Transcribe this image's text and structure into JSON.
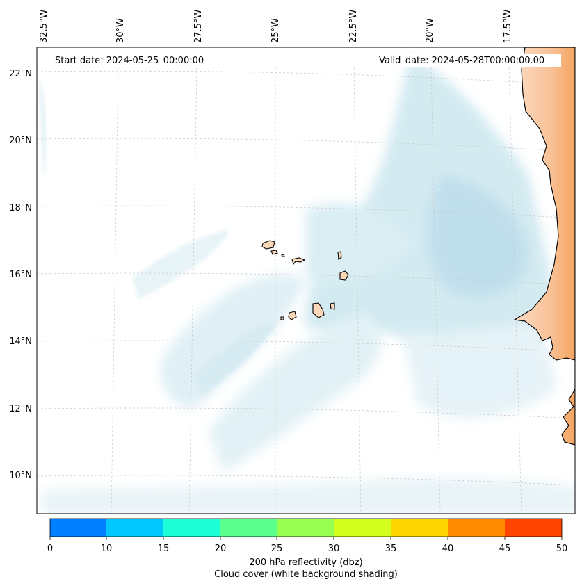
{
  "map": {
    "start_date": "Start date: 2024-05-25_00:00:00",
    "valid_date": "Valid_date: 2024-05-28T00:00:00.00",
    "longitude_labels": [
      "32.5°W",
      "30°W",
      "27.5°W",
      "25°W",
      "22.5°W",
      "20°W",
      "17.5°W"
    ],
    "latitude_labels": [
      "22°N",
      "20°N",
      "18°N",
      "16°N",
      "14°N",
      "12°N",
      "10°N"
    ],
    "colors": {
      "land_high": "#f4a460",
      "land_low": "#fcdcc4",
      "cloud": "#cfe8f0",
      "coast": "#000000",
      "grid": "#c8c8c8"
    }
  },
  "colorbar": {
    "ticks": [
      "0",
      "10",
      "15",
      "20",
      "25",
      "30",
      "35",
      "40",
      "45",
      "50"
    ],
    "colors": [
      "#0080ff",
      "#00c8ff",
      "#1effd8",
      "#5aff8c",
      "#96ff50",
      "#d2ff1e",
      "#ffd700",
      "#ff8c00",
      "#ff4500"
    ],
    "label": "200 hPa reflectivity (dbz)",
    "sublabel": "Cloud cover (white background shading)"
  }
}
